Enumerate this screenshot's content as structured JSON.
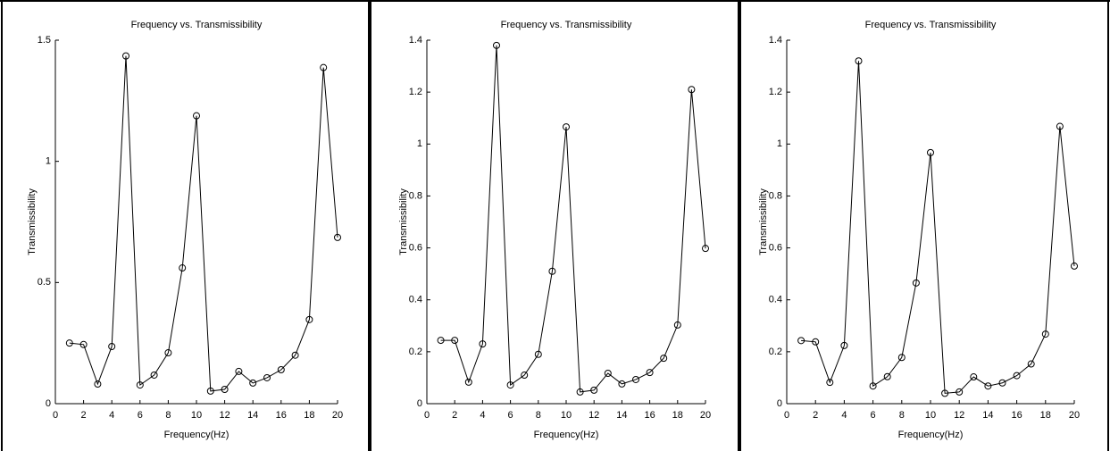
{
  "chart_data": [
    {
      "type": "line",
      "title": "Frequency vs. Transmissibility",
      "x_label": "Frequency(Hz)",
      "y_label": "Transmissibility",
      "x": [
        1,
        2,
        3,
        4,
        5,
        6,
        7,
        8,
        9,
        10,
        11,
        12,
        13,
        14,
        15,
        16,
        17,
        18,
        19,
        20
      ],
      "values": [
        0.25,
        0.244,
        0.081,
        0.236,
        1.435,
        0.077,
        0.118,
        0.21,
        0.56,
        1.188,
        0.052,
        0.059,
        0.133,
        0.085,
        0.107,
        0.14,
        0.2,
        0.347,
        1.387,
        0.686
      ],
      "color": "#000000",
      "marker": "circle",
      "xlim": [
        0,
        20
      ],
      "xticks": [
        0,
        2,
        4,
        6,
        8,
        10,
        12,
        14,
        16,
        18,
        20
      ],
      "ylim": [
        0,
        1.5
      ],
      "yticks": [
        0,
        0.5,
        1,
        1.5
      ]
    },
    {
      "type": "line",
      "title": "Frequency vs. Transmissibility",
      "x_label": "Frequency(Hz)",
      "y_label": "Transmissibility",
      "x": [
        1,
        2,
        3,
        4,
        5,
        6,
        7,
        8,
        9,
        10,
        11,
        12,
        13,
        14,
        15,
        16,
        17,
        18,
        19,
        20
      ],
      "values": [
        0.244,
        0.244,
        0.083,
        0.23,
        1.38,
        0.072,
        0.11,
        0.19,
        0.51,
        1.066,
        0.045,
        0.052,
        0.117,
        0.076,
        0.093,
        0.12,
        0.175,
        0.303,
        1.21,
        0.598
      ],
      "color": "#000000",
      "marker": "circle",
      "xlim": [
        0,
        20
      ],
      "xticks": [
        0,
        2,
        4,
        6,
        8,
        10,
        12,
        14,
        16,
        18,
        20
      ],
      "ylim": [
        0,
        1.4
      ],
      "yticks": [
        0,
        0.2,
        0.4,
        0.6,
        0.8,
        1,
        1.2,
        1.4
      ]
    },
    {
      "type": "line",
      "title": "Frequency vs. Transmissibility",
      "x_label": "Frequency(Hz)",
      "y_label": "Transmissibility",
      "x": [
        1,
        2,
        3,
        4,
        5,
        6,
        7,
        8,
        9,
        10,
        11,
        12,
        13,
        14,
        15,
        16,
        17,
        18,
        19,
        20
      ],
      "values": [
        0.243,
        0.238,
        0.082,
        0.224,
        1.32,
        0.068,
        0.104,
        0.178,
        0.465,
        0.967,
        0.04,
        0.045,
        0.103,
        0.068,
        0.08,
        0.108,
        0.153,
        0.268,
        1.068,
        0.53
      ],
      "color": "#000000",
      "marker": "circle",
      "xlim": [
        0,
        20
      ],
      "xticks": [
        0,
        2,
        4,
        6,
        8,
        10,
        12,
        14,
        16,
        18,
        20
      ],
      "ylim": [
        0,
        1.4
      ],
      "yticks": [
        0,
        0.2,
        0.4,
        0.6,
        0.8,
        1,
        1.2,
        1.4
      ]
    }
  ]
}
